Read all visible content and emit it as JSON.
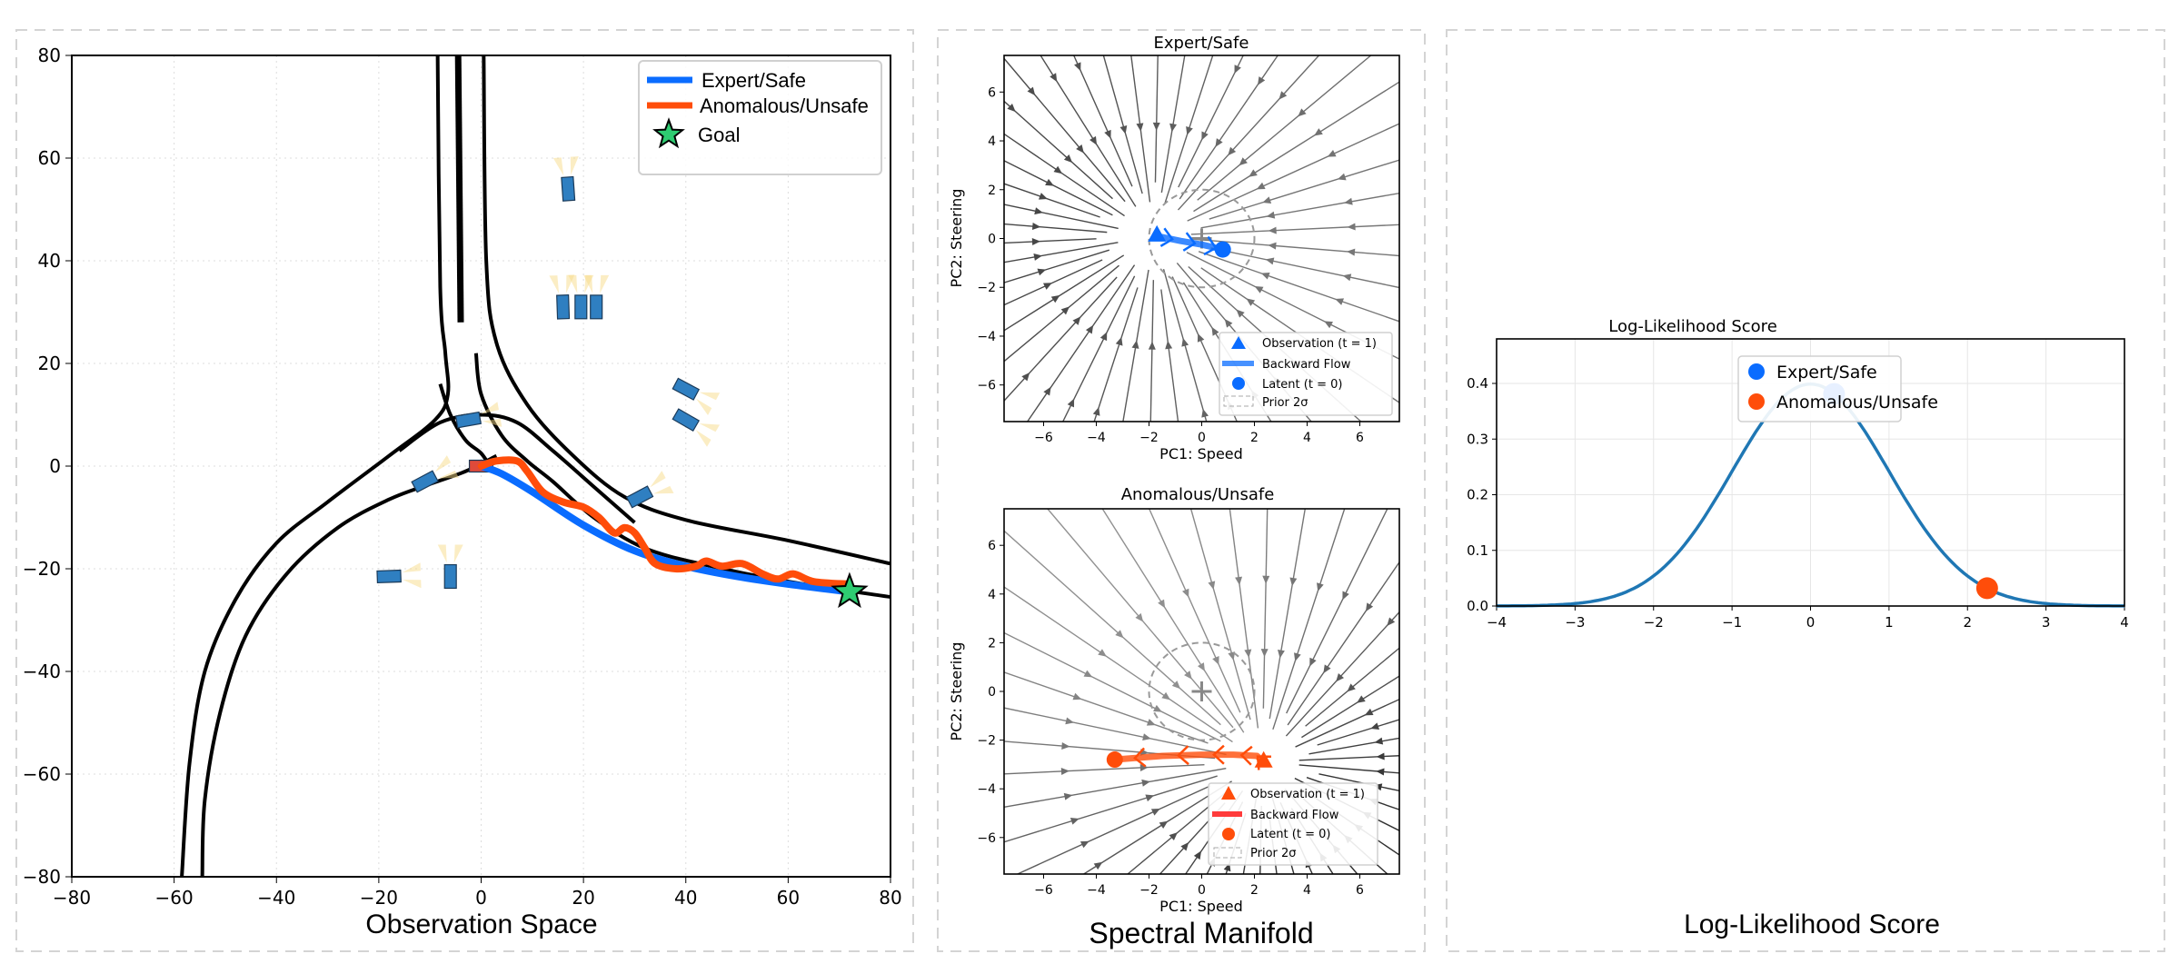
{
  "panels": {
    "observation_caption": "Observation Space",
    "manifold_caption": "Spectral Manifold",
    "likelihood_caption": "Log-Likelihood Score"
  },
  "colors": {
    "expert": "#0a6cff",
    "anomalous": "#ff4d0a",
    "goal": "#2ecc71",
    "vehicle": "#2f7fc1",
    "ego_vehicle": "#e04a3a",
    "density_curve": "#1f77b4",
    "panel_border": "#d4d4d4"
  },
  "chart_data": [
    {
      "id": "observation",
      "type": "line",
      "xlim": [
        -80,
        80
      ],
      "ylim": [
        -80,
        80
      ],
      "xticks": [
        "−80",
        "−60",
        "−40",
        "−20",
        "0",
        "20",
        "40",
        "60",
        "80"
      ],
      "yticks": [
        "−80",
        "−60",
        "−40",
        "−20",
        "0",
        "20",
        "40",
        "60",
        "80"
      ],
      "tick_values": [
        -80,
        -60,
        -40,
        -20,
        0,
        20,
        40,
        60,
        80
      ],
      "grid": true,
      "legend": {
        "placement": "top-right",
        "items": [
          "Expert/Safe",
          "Anomalous/Unsafe",
          "Goal"
        ]
      },
      "series": [
        {
          "name": "Expert/Safe",
          "points": [
            [
              0,
              0
            ],
            [
              4,
              -1.5
            ],
            [
              10,
              -5
            ],
            [
              20,
              -11.5
            ],
            [
              30,
              -16.5
            ],
            [
              40,
              -19.5
            ],
            [
              50,
              -21.5
            ],
            [
              60,
              -23
            ],
            [
              72,
              -24.5
            ]
          ]
        },
        {
          "name": "Anomalous/Unsafe",
          "points": [
            [
              0,
              0
            ],
            [
              3,
              1
            ],
            [
              7,
              1
            ],
            [
              9,
              -1
            ],
            [
              12,
              -5
            ],
            [
              16,
              -7
            ],
            [
              20,
              -8
            ],
            [
              23,
              -10
            ],
            [
              26,
              -13
            ],
            [
              28,
              -12
            ],
            [
              30,
              -13
            ],
            [
              32,
              -16
            ],
            [
              34,
              -19
            ],
            [
              38,
              -20
            ],
            [
              42,
              -19.5
            ],
            [
              44,
              -18.5
            ],
            [
              47,
              -19.5
            ],
            [
              51,
              -19
            ],
            [
              55,
              -21
            ],
            [
              58,
              -22
            ],
            [
              61,
              -21
            ],
            [
              65,
              -22.5
            ],
            [
              72,
              -23
            ]
          ]
        }
      ],
      "goal": [
        72,
        -24.5
      ],
      "roads": [
        [
          [
            -8.5,
            80
          ],
          [
            -8,
            35
          ],
          [
            -7,
            22
          ],
          [
            -6.5,
            14
          ],
          [
            -9,
            9
          ],
          [
            -18,
            2
          ],
          [
            -30,
            -7
          ],
          [
            -40,
            -15
          ],
          [
            -48,
            -26
          ],
          [
            -54,
            -40
          ],
          [
            -57,
            -58
          ],
          [
            -58.5,
            -80
          ]
        ],
        [
          [
            3,
            2
          ],
          [
            -3,
            -1
          ],
          [
            -10,
            -3.5
          ],
          [
            -18,
            -6.5
          ],
          [
            -28,
            -12
          ],
          [
            -38,
            -21
          ],
          [
            -46,
            -33
          ],
          [
            -51,
            -48
          ],
          [
            -54,
            -65
          ],
          [
            -54.5,
            -80
          ]
        ],
        [
          [
            0.5,
            80
          ],
          [
            1,
            40
          ],
          [
            3,
            24
          ],
          [
            9,
            12
          ],
          [
            18,
            2
          ],
          [
            28,
            -6
          ],
          [
            40,
            -10.5
          ],
          [
            60,
            -14.5
          ],
          [
            80,
            -19
          ]
        ],
        [
          [
            -16,
            3
          ],
          [
            -8,
            8.5
          ],
          [
            0,
            10
          ],
          [
            7,
            8.5
          ],
          [
            14,
            3
          ],
          [
            22,
            -4
          ],
          [
            30,
            -11
          ]
        ],
        [
          [
            -1,
            22
          ],
          [
            0,
            14
          ],
          [
            4,
            6
          ],
          [
            9,
            1
          ],
          [
            14,
            -3
          ],
          [
            22,
            -10
          ],
          [
            32,
            -16
          ],
          [
            45,
            -19.5
          ],
          [
            60,
            -22.5
          ],
          [
            80,
            -25.5
          ]
        ],
        [
          [
            -8,
            16
          ],
          [
            -6,
            10
          ],
          [
            -3,
            5
          ],
          [
            0,
            2.5
          ],
          [
            2,
            -0.5
          ]
        ]
      ],
      "road_centerline": [
        [
          -4.5,
          80
        ],
        [
          -4,
          28
        ]
      ],
      "vehicles": [
        {
          "x": 17,
          "y": 54,
          "heading": 94,
          "ego": false
        },
        {
          "x": 16,
          "y": 31,
          "heading": 92,
          "ego": false
        },
        {
          "x": 19.5,
          "y": 31,
          "heading": 90,
          "ego": false
        },
        {
          "x": 22.5,
          "y": 31,
          "heading": 90,
          "ego": false
        },
        {
          "x": 40,
          "y": 15,
          "heading": -28,
          "ego": false
        },
        {
          "x": 40,
          "y": 9,
          "heading": -30,
          "ego": false
        },
        {
          "x": 31,
          "y": -6,
          "heading": 28,
          "ego": false
        },
        {
          "x": -2.5,
          "y": 9,
          "heading": 10,
          "ego": false
        },
        {
          "x": -11,
          "y": -3,
          "heading": 28,
          "ego": false
        },
        {
          "x": -18,
          "y": -21.5,
          "heading": 2,
          "ego": false
        },
        {
          "x": -6,
          "y": -21.5,
          "heading": 90,
          "ego": false
        },
        {
          "x": 0,
          "y": 0,
          "heading": 0,
          "ego": true
        }
      ]
    },
    {
      "id": "manifold-expert",
      "type": "streamplot",
      "title": "Expert/Safe",
      "xlabel": "PC1: Speed",
      "ylabel": "PC2: Steering",
      "xlim": [
        -7.5,
        7.5
      ],
      "ylim": [
        -7.5,
        7.5
      ],
      "tick_values": [
        -6,
        -4,
        -2,
        0,
        2,
        4,
        6
      ],
      "ticks": [
        "−6",
        "−4",
        "−2",
        "0",
        "2",
        "4",
        "6"
      ],
      "flow_sink": [
        -1.8,
        0.1
      ],
      "prior_center": [
        0,
        0
      ],
      "prior_radius": 2,
      "observation": [
        -1.7,
        0.1
      ],
      "latent": [
        0.8,
        -0.45
      ],
      "backward_flow": [
        [
          -1.7,
          0.1
        ],
        [
          -0.8,
          -0.1
        ],
        [
          0,
          -0.25
        ],
        [
          0.8,
          -0.45
        ]
      ],
      "legend": {
        "placement": "lower-right",
        "items": [
          "Observation (t = 1)",
          "Backward Flow",
          "Latent (t = 0)",
          "Prior 2σ"
        ]
      },
      "color": "#0a6cff"
    },
    {
      "id": "manifold-anomalous",
      "type": "streamplot",
      "title": "Anomalous/Unsafe",
      "xlabel": "PC1: Speed",
      "ylabel": "PC2: Steering",
      "xlim": [
        -7.5,
        7.5
      ],
      "ylim": [
        -7.5,
        7.5
      ],
      "tick_values": [
        -6,
        -4,
        -2,
        0,
        2,
        4,
        6
      ],
      "ticks": [
        "−6",
        "−4",
        "−2",
        "0",
        "2",
        "4",
        "6"
      ],
      "flow_sink": [
        2.3,
        -2.9
      ],
      "prior_center": [
        0,
        0
      ],
      "prior_radius": 2,
      "observation": [
        2.35,
        -2.9
      ],
      "latent": [
        -3.3,
        -2.8
      ],
      "backward_flow": [
        [
          2.35,
          -2.9
        ],
        [
          2.1,
          -2.65
        ],
        [
          1.2,
          -2.6
        ],
        [
          0,
          -2.6
        ],
        [
          -1.5,
          -2.65
        ],
        [
          -3.3,
          -2.8
        ]
      ],
      "legend": {
        "placement": "lower-right",
        "items": [
          "Observation (t = 1)",
          "Backward Flow",
          "Latent (t = 0)",
          "Prior 2σ"
        ]
      },
      "color": "#ff4d0a"
    },
    {
      "id": "loglik",
      "type": "line",
      "title": "Log-Likelihood Score",
      "xlim": [
        -4,
        4
      ],
      "ylim": [
        0,
        0.48
      ],
      "xtick_values": [
        -4,
        -3,
        -2,
        -1,
        0,
        1,
        2,
        3,
        4
      ],
      "xticks": [
        "−4",
        "−3",
        "−2",
        "−1",
        "0",
        "1",
        "2",
        "3",
        "4"
      ],
      "ytick_values": [
        0,
        0.1,
        0.2,
        0.3,
        0.4
      ],
      "yticks": [
        "0.0",
        "0.1",
        "0.2",
        "0.3",
        "0.4"
      ],
      "grid": true,
      "curve": "standard normal pdf",
      "points": [
        {
          "name": "Expert/Safe",
          "x": 0.3,
          "y": 0.381
        },
        {
          "name": "Anomalous/Unsafe",
          "x": 2.25,
          "y": 0.032
        }
      ],
      "legend": {
        "placement": "top-right",
        "items": [
          "Expert/Safe",
          "Anomalous/Unsafe"
        ]
      }
    }
  ]
}
